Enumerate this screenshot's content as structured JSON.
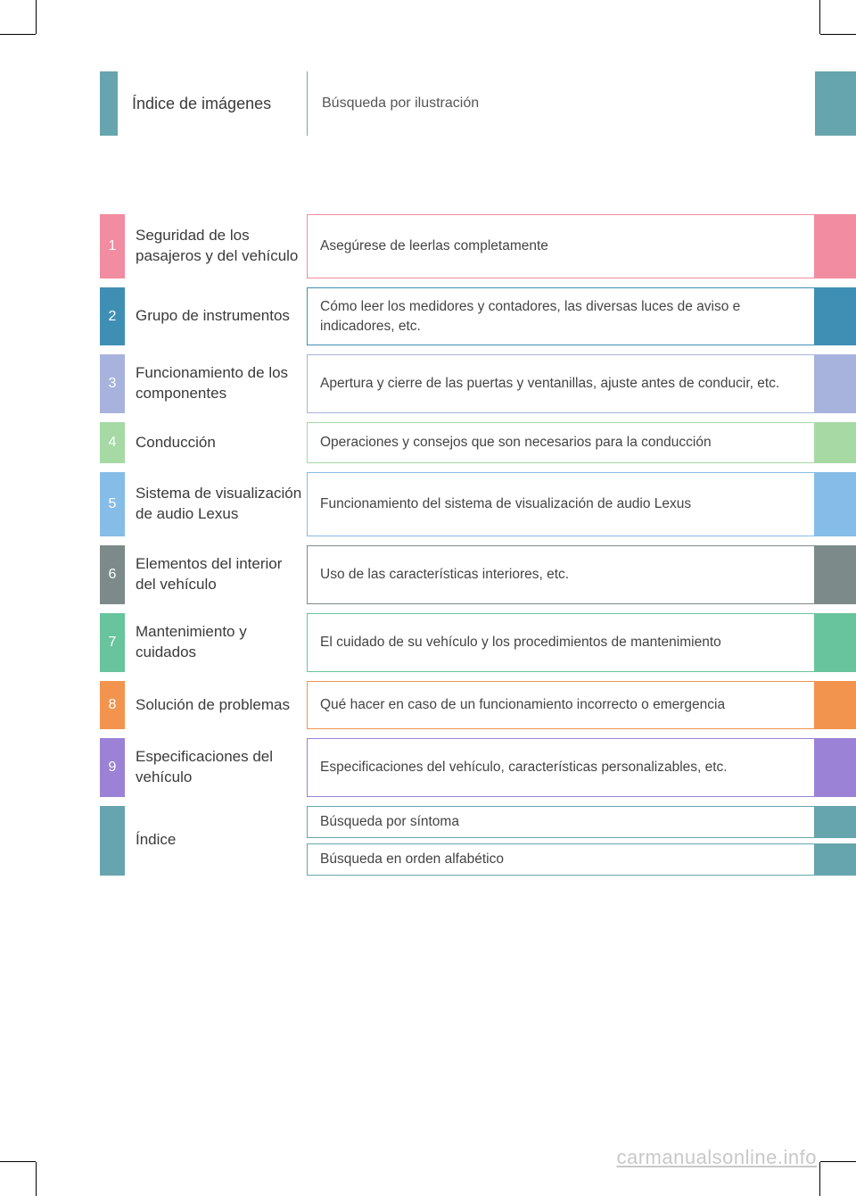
{
  "colors": {
    "teal": "#66a5ad",
    "pink": "#f28ca0",
    "blue2": "#3f8fb5",
    "lavender": "#a7b3dd",
    "lightgreen": "#a7d9a5",
    "skyblue": "#86bde8",
    "slate": "#7c8a8a",
    "mint": "#67c49c",
    "orange": "#f2944e",
    "purple": "#9b82d6"
  },
  "header": {
    "title": "Índice de imágenes",
    "description": "Búsqueda por ilustración",
    "tab_color": "#66a5ad",
    "right_tab_color": "#66a5ad",
    "divider_color": "#66a5ad"
  },
  "sections": [
    {
      "num": "1",
      "title": "Seguridad de los pasajeros y del vehículo",
      "desc": "Asegúrese de leerlas completamente",
      "color": "#f28ca0",
      "min_height": 72
    },
    {
      "num": "2",
      "title": "Grupo de instrumentos",
      "desc": "Cómo leer los medidores y contadores, las diversas luces de aviso e indicadores, etc.",
      "color": "#3f8fb5",
      "min_height": 60
    },
    {
      "num": "3",
      "title": "Funcionamiento de los componentes",
      "desc": "Apertura y cierre de las puertas y ventanillas, ajuste antes de conducir, etc.",
      "color": "#a7b3dd",
      "min_height": 60
    },
    {
      "num": "4",
      "title": "Conducción",
      "desc": "Operaciones y consejos que son necesarios para la conducción",
      "color": "#a7d9a5",
      "min_height": 46
    },
    {
      "num": "5",
      "title": "Sistema de visualización de audio Lexus",
      "desc": "Funcionamiento del sistema de visualización de audio Lexus",
      "color": "#86bde8",
      "min_height": 72
    },
    {
      "num": "6",
      "title": "Elementos del interior del vehículo",
      "desc": "Uso de las características interiores, etc.",
      "color": "#7c8a8a",
      "min_height": 54
    },
    {
      "num": "7",
      "title": "Mantenimiento y cuidados",
      "desc": "El cuidado de su vehículo y los procedimientos de mantenimiento",
      "color": "#67c49c",
      "min_height": 54
    },
    {
      "num": "8",
      "title": "Solución de problemas",
      "desc": "Qué hacer en caso de un funcionamiento incorrecto o emergencia",
      "color": "#f2944e",
      "min_height": 54
    },
    {
      "num": "9",
      "title": "Especificaciones del vehículo",
      "desc": "Especificaciones del vehículo, características personalizables, etc.",
      "color": "#9b82d6",
      "min_height": 54
    }
  ],
  "index": {
    "title": "Índice",
    "color": "#66a5ad",
    "lines": [
      "Búsqueda por síntoma",
      "Búsqueda en orden alfabético"
    ]
  },
  "watermark": "carmanualsonline.info"
}
